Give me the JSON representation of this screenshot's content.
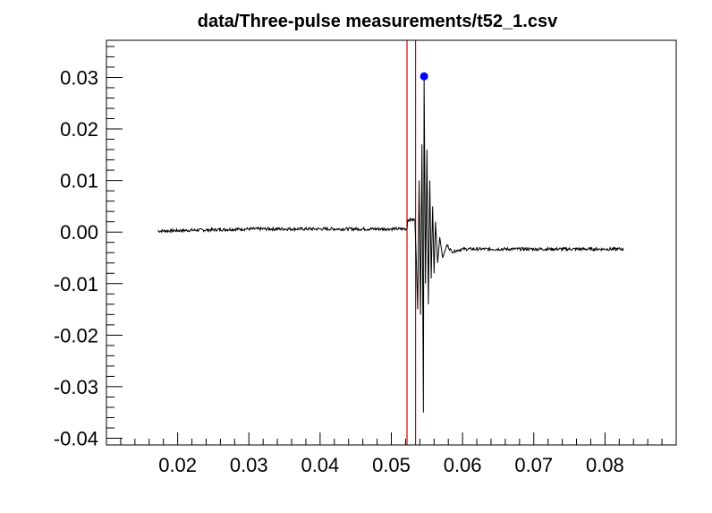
{
  "chart_data": {
    "type": "line",
    "title": "data/Three-pulse measurements/t52_1.csv",
    "xlabel": "",
    "ylabel": "",
    "xlim": [
      0.01,
      0.09
    ],
    "ylim": [
      -0.0413,
      0.0372
    ],
    "x_ticks": [
      {
        "value": 0.02,
        "label": "0.02"
      },
      {
        "value": 0.03,
        "label": "0.03"
      },
      {
        "value": 0.04,
        "label": "0.04"
      },
      {
        "value": 0.05,
        "label": "0.05"
      },
      {
        "value": 0.06,
        "label": "0.06"
      },
      {
        "value": 0.07,
        "label": "0.07"
      },
      {
        "value": 0.08,
        "label": "0.08"
      }
    ],
    "y_ticks": [
      {
        "value": 0.03,
        "label": "0.03"
      },
      {
        "value": 0.02,
        "label": "0.02"
      },
      {
        "value": 0.01,
        "label": "0.01"
      },
      {
        "value": 0.0,
        "label": "0.00"
      },
      {
        "value": -0.01,
        "label": "-0.01"
      },
      {
        "value": -0.02,
        "label": "-0.02"
      },
      {
        "value": -0.03,
        "label": "-0.03"
      },
      {
        "value": -0.04,
        "label": "-0.04"
      }
    ],
    "grid": false,
    "series": [
      {
        "points": [
          [
            0.0172,
            0.0002
          ],
          [
            0.03,
            0.0006
          ],
          [
            0.04,
            0.0006
          ],
          [
            0.05,
            0.0006
          ],
          [
            0.0522,
            0.0006
          ],
          [
            0.0523,
            0.0024
          ],
          [
            0.0533,
            0.0024
          ],
          [
            0.0535,
            -0.005
          ],
          [
            0.0537,
            -0.015
          ],
          [
            0.0539,
            0.01
          ],
          [
            0.0541,
            -0.016
          ],
          [
            0.0543,
            0.017
          ],
          [
            0.0545,
            -0.035
          ],
          [
            0.0546,
            0.0302
          ],
          [
            0.0548,
            -0.01
          ],
          [
            0.055,
            0.016
          ],
          [
            0.0552,
            -0.014
          ],
          [
            0.0554,
            0.01
          ],
          [
            0.0556,
            -0.009
          ],
          [
            0.0558,
            0.005
          ],
          [
            0.056,
            -0.008
          ],
          [
            0.0562,
            0.002
          ],
          [
            0.0565,
            -0.006
          ],
          [
            0.0568,
            -0.001
          ],
          [
            0.0572,
            -0.005
          ],
          [
            0.0578,
            -0.0025
          ],
          [
            0.0585,
            -0.0038
          ],
          [
            0.06,
            -0.0033
          ],
          [
            0.07,
            -0.0033
          ],
          [
            0.0826,
            -0.0033
          ]
        ],
        "noise_amplitude": 0.0003,
        "color": "#000000"
      }
    ],
    "vertical_markers": [
      {
        "x": 0.0522,
        "color": "#cc0000"
      },
      {
        "x": 0.0534,
        "color": "#cc0000"
      }
    ],
    "highlight_point": {
      "x": 0.0546,
      "y": 0.0302,
      "color": "#0000ff"
    }
  }
}
